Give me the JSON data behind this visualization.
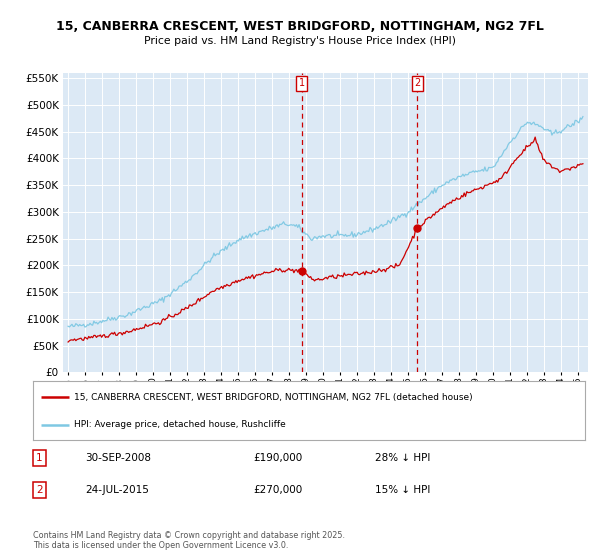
{
  "title": "15, CANBERRA CRESCENT, WEST BRIDGFORD, NOTTINGHAM, NG2 7FL",
  "subtitle": "Price paid vs. HM Land Registry's House Price Index (HPI)",
  "legend_line1": "15, CANBERRA CRESCENT, WEST BRIDGFORD, NOTTINGHAM, NG2 7FL (detached house)",
  "legend_line2": "HPI: Average price, detached house, Rushcliffe",
  "annotation1_date": "30-SEP-2008",
  "annotation1_price": "£190,000",
  "annotation1_pct": "28% ↓ HPI",
  "annotation2_date": "24-JUL-2015",
  "annotation2_price": "£270,000",
  "annotation2_pct": "15% ↓ HPI",
  "footnote": "Contains HM Land Registry data © Crown copyright and database right 2025.\nThis data is licensed under the Open Government Licence v3.0.",
  "hpi_color": "#7ec8e3",
  "price_color": "#cc0000",
  "vline_color": "#cc0000",
  "plot_bg_color": "#dce9f5",
  "grid_color": "#ffffff",
  "ylim": [
    0,
    560000
  ],
  "yticks": [
    0,
    50000,
    100000,
    150000,
    200000,
    250000,
    300000,
    350000,
    400000,
    450000,
    500000,
    550000
  ],
  "sale1_year": 2008.75,
  "sale1_price": 190000,
  "sale2_year": 2015.56,
  "sale2_price": 270000
}
